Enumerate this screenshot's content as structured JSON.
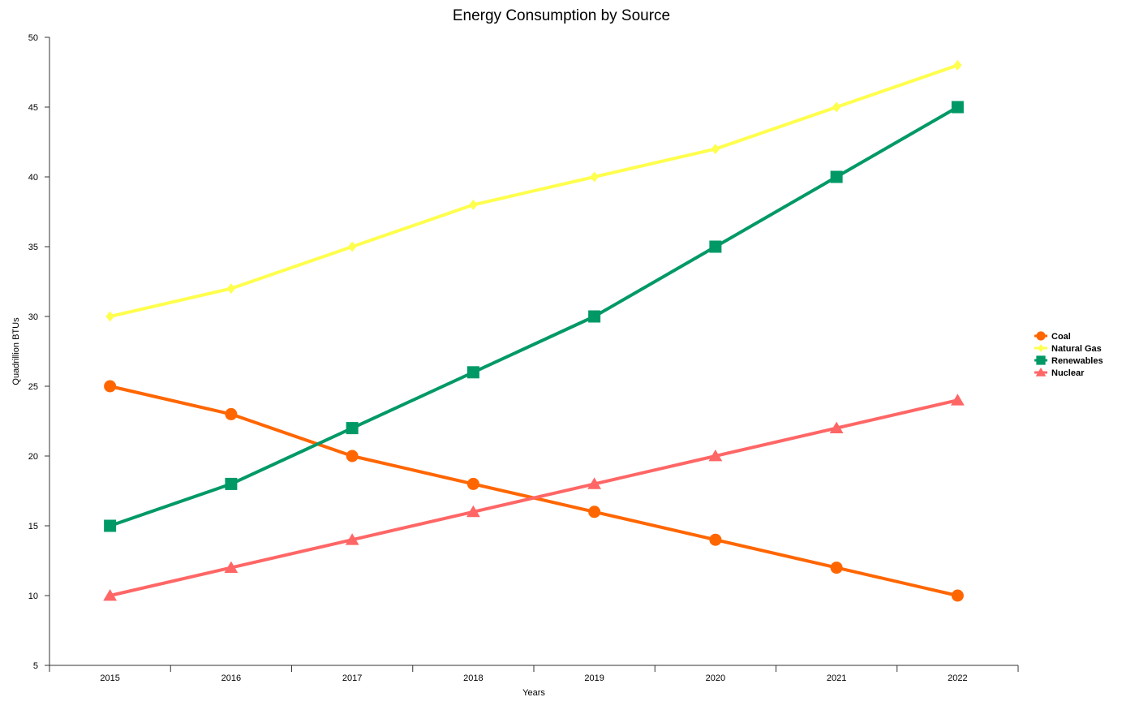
{
  "chart_data": {
    "type": "line",
    "title": "Energy Consumption by Source",
    "xlabel": "Years",
    "ylabel": "Quadrillion BTUs",
    "categories": [
      "2015",
      "2016",
      "2017",
      "2018",
      "2019",
      "2020",
      "2021",
      "2022"
    ],
    "ylim": [
      5,
      50
    ],
    "yticks": [
      "5",
      "10",
      "15",
      "20",
      "25",
      "30",
      "35",
      "40",
      "45",
      "50"
    ],
    "grid": false,
    "legend_position": "right",
    "series": [
      {
        "name": "Coal",
        "color": "#ff6600",
        "marker": "circle",
        "values": [
          25,
          23,
          20,
          18,
          16,
          14,
          12,
          10
        ]
      },
      {
        "name": "Natural Gas",
        "color": "#ffff4d",
        "marker": "diamond",
        "values": [
          30,
          32,
          35,
          38,
          40,
          42,
          45,
          48
        ]
      },
      {
        "name": "Renewables",
        "color": "#009966",
        "marker": "square",
        "values": [
          15,
          18,
          22,
          26,
          30,
          35,
          40,
          45
        ]
      },
      {
        "name": "Nuclear",
        "color": "#ff6666",
        "marker": "triangle",
        "values": [
          10,
          12,
          14,
          16,
          18,
          20,
          22,
          24
        ]
      }
    ]
  }
}
